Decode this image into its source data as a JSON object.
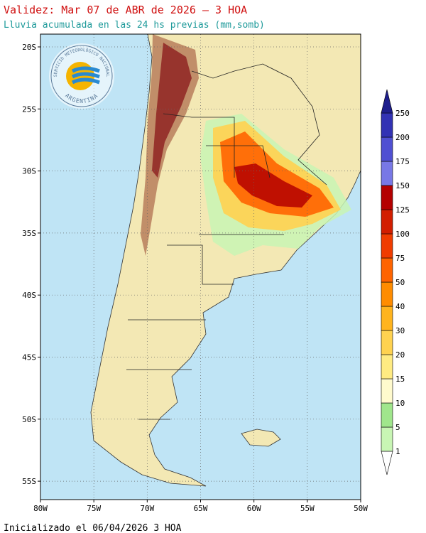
{
  "header": {
    "title": "Validez: Mar 07 de ABR de 2026 – 3 HOA",
    "subtitle": "Lluvia acumulada en las 24 hs previas (mm,somb)"
  },
  "map": {
    "lat_labels": [
      "20S",
      "25S",
      "30S",
      "35S",
      "40S",
      "45S",
      "50S",
      "55S"
    ],
    "lon_labels": [
      "80W",
      "75W",
      "70W",
      "65W",
      "60W",
      "55W",
      "50W"
    ]
  },
  "logo": {
    "top": "SERVICIO METEOROLÓGICO NACIONAL",
    "bottom": "ARGENTINA"
  },
  "colorbar": {
    "levels": [
      1,
      5,
      10,
      15,
      20,
      30,
      40,
      50,
      75,
      100,
      125,
      150,
      175,
      200,
      250
    ],
    "colors": [
      "#ffffff",
      "#c8f5b4",
      "#a0e68c",
      "#fffacd",
      "#ffeb82",
      "#ffd250",
      "#ffb41e",
      "#ff8c00",
      "#ff6400",
      "#f03c00",
      "#d21e00",
      "#b40000",
      "#7878e6",
      "#5050d2",
      "#3232b4",
      "#1e1e8c"
    ]
  },
  "footer": "Inicializado el 06/04/2026 3 HOA"
}
